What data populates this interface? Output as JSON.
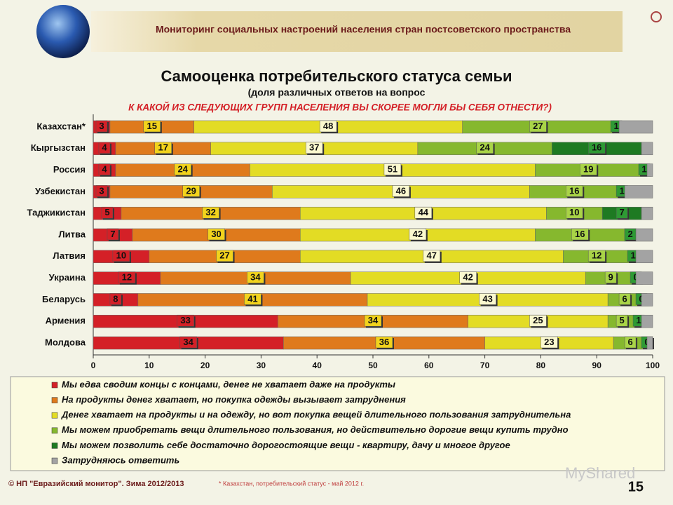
{
  "header": {
    "title": "Мониторинг социальных настроений населения стран постсоветского пространства"
  },
  "chart_data": {
    "type": "stacked-bar-horizontal",
    "title": "Самооценка потребительского статуса семьи",
    "subtitle": "(доля различных ответов на вопрос",
    "question": "К КАКОЙ ИЗ СЛЕДУЮЩИХ ГРУПП НАСЕЛЕНИЯ ВЫ СКОРЕЕ МОГЛИ БЫ СЕБЯ ОТНЕСТИ?)",
    "categories": [
      "Казахстан*",
      "Кыргызстан",
      "Россия",
      "Узбекистан",
      "Таджикистан",
      "Литва",
      "Латвия",
      "Украина",
      "Беларусь",
      "Армения",
      "Молдова"
    ],
    "xlim": [
      0,
      100
    ],
    "xticks": [
      0,
      10,
      20,
      30,
      40,
      50,
      60,
      70,
      80,
      90,
      100
    ],
    "series": [
      {
        "name": "Мы едва сводим концы с концами, денег не хватает даже на продукты",
        "color": "#d42027",
        "label_color": "#d42027",
        "values": [
          3,
          4,
          4,
          3,
          5,
          7,
          10,
          12,
          8,
          33,
          34
        ]
      },
      {
        "name": "На продукты денег хватает, но покупка одежды вызывает затруднения",
        "color": "#df7a1c",
        "label_color": "#f2d31c",
        "values": [
          15,
          17,
          24,
          29,
          32,
          30,
          27,
          34,
          41,
          34,
          36
        ]
      },
      {
        "name": "Денег хватает на продукты и на одежду, но вот покупка вещей длительного пользования затруднительна",
        "color": "#e3dc24",
        "label_color": "#fbf9cf",
        "values": [
          48,
          37,
          51,
          46,
          44,
          42,
          47,
          42,
          43,
          25,
          23
        ]
      },
      {
        "name": "Мы можем приобретать вещи длительного пользования, но действительно дорогие вещи купить трудно",
        "color": "#86b82e",
        "label_color": "#a9d447",
        "values": [
          27,
          24,
          19,
          16,
          10,
          16,
          12,
          9,
          6,
          5,
          6
        ]
      },
      {
        "name": "Мы можем позволить себе достаточно дорогостоящие вещи - квартиру, дачу и многое другое",
        "color": "#1e7a22",
        "label_color": "#2e9a34",
        "values": [
          1,
          16,
          1,
          1,
          7,
          2,
          1,
          0,
          0,
          1,
          0
        ]
      },
      {
        "name": "Затрудняюсь ответить",
        "color": "#a3a3a3",
        "show_labels": false,
        "values": [
          6,
          2,
          1,
          5,
          2,
          3,
          3,
          3,
          2,
          2,
          1
        ]
      }
    ]
  },
  "footer": {
    "copyright": "© НП \"Евразийский монитор\". Зима 2012/2013",
    "note": "* Казахстан, потребительский статус - май 2012 г.",
    "page": "15",
    "watermark": "MyShared"
  }
}
